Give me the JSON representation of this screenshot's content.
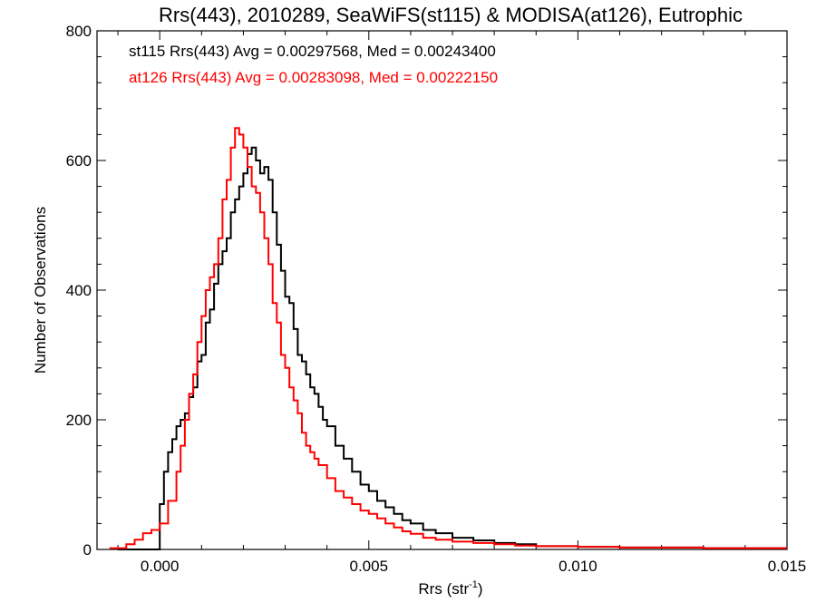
{
  "chart_data": {
    "type": "line",
    "title": "Rrs(443), 2010289, SeaWiFS(st115) & MODISA(at126), Eutrophic",
    "xlabel": "Rrs (str",
    "xlabel_sup": "-1",
    "xlabel_close": ")",
    "ylabel": "Number of Observations",
    "xlim": [
      -0.0015,
      0.015
    ],
    "ylim": [
      0,
      800
    ],
    "x_ticks": [
      0.0,
      0.005,
      0.01,
      0.015
    ],
    "x_tick_labels": [
      "0.000",
      "0.005",
      "0.010",
      "0.015"
    ],
    "y_ticks": [
      0,
      200,
      400,
      600,
      800
    ],
    "y_tick_labels": [
      "0",
      "200",
      "400",
      "600",
      "800"
    ],
    "grid": false,
    "step": true,
    "legend_placement": "top-left",
    "annotations": [
      {
        "text": "st115 Rrs(443) Avg = 0.00297568, Med = 0.00243400",
        "color": "#000000"
      },
      {
        "text": "at126 Rrs(443) Avg = 0.00283098, Med = 0.00222150",
        "color": "#ff0000"
      }
    ],
    "series": [
      {
        "name": "st115",
        "color": "#000000",
        "x": [
          -0.001,
          0.0,
          0.0001,
          0.0002,
          0.0003,
          0.0004,
          0.0005,
          0.0006,
          0.0007,
          0.0008,
          0.0009,
          0.001,
          0.0011,
          0.0012,
          0.0013,
          0.0014,
          0.0015,
          0.0016,
          0.0017,
          0.0018,
          0.0019,
          0.002,
          0.0021,
          0.0022,
          0.0023,
          0.0024,
          0.0025,
          0.0026,
          0.0027,
          0.0028,
          0.0029,
          0.003,
          0.0031,
          0.0032,
          0.0033,
          0.0034,
          0.0035,
          0.0036,
          0.0037,
          0.0038,
          0.0039,
          0.004,
          0.0042,
          0.0044,
          0.0046,
          0.0048,
          0.005,
          0.0052,
          0.0054,
          0.0056,
          0.0058,
          0.006,
          0.0063,
          0.0066,
          0.007,
          0.0075,
          0.008,
          0.0085,
          0.009,
          0.01,
          0.011,
          0.012,
          0.013,
          0.014,
          0.015
        ],
        "y": [
          0,
          70,
          120,
          150,
          170,
          190,
          200,
          210,
          235,
          250,
          290,
          300,
          350,
          370,
          410,
          440,
          460,
          480,
          520,
          540,
          560,
          580,
          610,
          620,
          600,
          580,
          590,
          570,
          520,
          470,
          430,
          390,
          380,
          340,
          300,
          290,
          270,
          250,
          240,
          220,
          200,
          190,
          160,
          140,
          120,
          100,
          90,
          75,
          65,
          55,
          45,
          40,
          30,
          25,
          18,
          14,
          10,
          8,
          5,
          4,
          3,
          3,
          2,
          2,
          2
        ]
      },
      {
        "name": "at126",
        "color": "#ff0000",
        "x": [
          -0.0012,
          -0.0008,
          -0.0006,
          -0.0004,
          -0.0002,
          0.0,
          0.0002,
          0.0004,
          0.0005,
          0.0006,
          0.0007,
          0.0008,
          0.0009,
          0.001,
          0.0011,
          0.0012,
          0.0013,
          0.0014,
          0.0015,
          0.0016,
          0.0017,
          0.0018,
          0.0019,
          0.002,
          0.0021,
          0.0022,
          0.0023,
          0.0024,
          0.0025,
          0.0026,
          0.0027,
          0.0028,
          0.0029,
          0.003,
          0.0031,
          0.0032,
          0.0033,
          0.0034,
          0.0035,
          0.0036,
          0.0037,
          0.0038,
          0.004,
          0.0042,
          0.0044,
          0.0046,
          0.0048,
          0.005,
          0.0052,
          0.0054,
          0.0056,
          0.0058,
          0.006,
          0.0063,
          0.0066,
          0.007,
          0.0075,
          0.008,
          0.0085,
          0.009,
          0.01,
          0.011,
          0.012,
          0.013,
          0.014,
          0.015
        ],
        "y": [
          2,
          8,
          15,
          25,
          30,
          40,
          75,
          120,
          160,
          200,
          240,
          270,
          320,
          360,
          400,
          420,
          440,
          480,
          540,
          570,
          620,
          650,
          640,
          620,
          590,
          560,
          550,
          520,
          480,
          440,
          380,
          350,
          300,
          280,
          250,
          230,
          210,
          180,
          160,
          150,
          140,
          130,
          110,
          90,
          80,
          70,
          60,
          55,
          48,
          40,
          34,
          28,
          24,
          18,
          15,
          12,
          10,
          8,
          6,
          5,
          4,
          3,
          3,
          2,
          2,
          2
        ]
      }
    ]
  }
}
